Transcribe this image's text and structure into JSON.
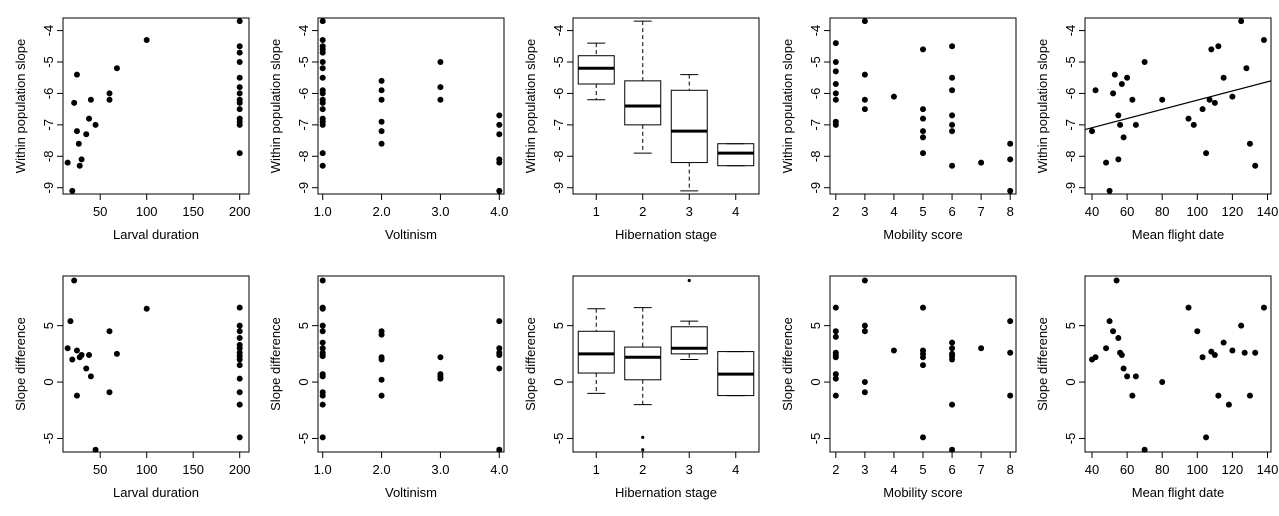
{
  "chart_data": [
    {
      "type": "scatter",
      "row": 0,
      "col": 0,
      "xlabel": "Larval duration",
      "ylabel": "Within population slope",
      "xlim": [
        10,
        210
      ],
      "ylim": [
        -9.2,
        -3.6
      ],
      "xticks": [
        50,
        100,
        150,
        200
      ],
      "yticks": [
        -9,
        -8,
        -7,
        -6,
        -5,
        -4
      ],
      "x": [
        15,
        20,
        22,
        25,
        25,
        27,
        28,
        30,
        35,
        38,
        40,
        45,
        60,
        60,
        68,
        100,
        200,
        200,
        200,
        200,
        200,
        200,
        200,
        200,
        200,
        200,
        200,
        200,
        200,
        200
      ],
      "y": [
        -8.2,
        -9.1,
        -6.3,
        -5.4,
        -7.2,
        -7.6,
        -8.3,
        -8.1,
        -7.3,
        -6.8,
        -6.2,
        -7.0,
        -6.0,
        -6.2,
        -5.2,
        -4.3,
        -3.7,
        -4.5,
        -4.7,
        -5.0,
        -5.5,
        -5.8,
        -6.0,
        -6.2,
        -6.3,
        -6.5,
        -6.8,
        -6.9,
        -7.0,
        -7.9
      ]
    },
    {
      "type": "scatter",
      "row": 0,
      "col": 1,
      "xlabel": "Voltinism",
      "ylabel": "Within population slope",
      "xlim": [
        0.92,
        4.08
      ],
      "ylim": [
        -9.2,
        -3.6
      ],
      "xticks": [
        1.0,
        2.0,
        3.0,
        4.0
      ],
      "xtick_format": 1,
      "yticks": [
        -9,
        -8,
        -7,
        -6,
        -5,
        -4
      ],
      "x": [
        1,
        1,
        1,
        1,
        1,
        1,
        1,
        1,
        1,
        1,
        1,
        1,
        1,
        1,
        1,
        1,
        1,
        1,
        2,
        2,
        2,
        2,
        2,
        2,
        3,
        3,
        3,
        4,
        4,
        4,
        4,
        4,
        4
      ],
      "y": [
        -3.7,
        -4.3,
        -4.5,
        -4.6,
        -4.7,
        -5.0,
        -5.2,
        -5.5,
        -5.9,
        -6.0,
        -6.2,
        -6.3,
        -6.5,
        -6.8,
        -6.9,
        -7.0,
        -7.9,
        -8.3,
        -5.6,
        -5.9,
        -6.2,
        -6.9,
        -7.2,
        -7.6,
        -5.0,
        -5.8,
        -6.2,
        -6.7,
        -7.0,
        -7.3,
        -8.1,
        -8.2,
        -9.1
      ]
    },
    {
      "type": "box",
      "row": 0,
      "col": 2,
      "xlabel": "Hibernation stage",
      "ylabel": "Within population slope",
      "xlim": [
        0.5,
        4.5
      ],
      "ylim": [
        -9.2,
        -3.6
      ],
      "xticks": [
        1,
        2,
        3,
        4
      ],
      "yticks": [
        -9,
        -8,
        -7,
        -6,
        -5,
        -4
      ],
      "categories": [
        1,
        2,
        3,
        4
      ],
      "boxes": [
        {
          "whislo": -6.2,
          "q1": -5.7,
          "med": -5.2,
          "q3": -4.8,
          "whishi": -4.4,
          "fliers": []
        },
        {
          "whislo": -7.9,
          "q1": -7.0,
          "med": -6.4,
          "q3": -5.6,
          "whishi": -3.7,
          "fliers": []
        },
        {
          "whislo": -9.1,
          "q1": -8.2,
          "med": -7.2,
          "q3": -5.9,
          "whishi": -5.4,
          "fliers": []
        },
        {
          "whislo": -8.3,
          "q1": -8.3,
          "med": -7.9,
          "q3": -7.6,
          "whishi": -7.6,
          "fliers": []
        }
      ]
    },
    {
      "type": "scatter",
      "row": 0,
      "col": 3,
      "xlabel": "Mobility score",
      "ylabel": "Within population slope",
      "xlim": [
        1.8,
        8.2
      ],
      "ylim": [
        -9.2,
        -3.6
      ],
      "xticks": [
        2,
        3,
        4,
        5,
        6,
        7,
        8
      ],
      "yticks": [
        -9,
        -8,
        -7,
        -6,
        -5,
        -4
      ],
      "x": [
        2,
        2,
        2,
        2,
        2,
        2,
        2,
        2,
        3,
        3,
        3,
        3,
        4,
        5,
        5,
        5,
        5,
        5,
        5,
        6,
        6,
        6,
        6,
        6,
        6,
        6,
        7,
        8,
        8,
        8
      ],
      "y": [
        -4.4,
        -5.0,
        -5.3,
        -5.7,
        -6.0,
        -6.2,
        -6.9,
        -7.0,
        -3.7,
        -5.4,
        -6.2,
        -6.5,
        -6.1,
        -4.6,
        -6.5,
        -6.8,
        -7.2,
        -7.4,
        -7.9,
        -4.5,
        -5.5,
        -5.9,
        -6.7,
        -7.0,
        -7.2,
        -8.3,
        -8.2,
        -7.6,
        -8.1,
        -9.1
      ]
    },
    {
      "type": "scatter",
      "row": 0,
      "col": 4,
      "xlabel": "Mean flight date",
      "ylabel": "Within population slope",
      "xlim": [
        36,
        142
      ],
      "ylim": [
        -9.2,
        -3.6
      ],
      "xticks": [
        40,
        60,
        80,
        100,
        120,
        140
      ],
      "yticks": [
        -9,
        -8,
        -7,
        -6,
        -5,
        -4
      ],
      "x": [
        40,
        42,
        48,
        50,
        52,
        53,
        55,
        55,
        56,
        57,
        58,
        60,
        63,
        65,
        70,
        80,
        95,
        98,
        103,
        105,
        107,
        108,
        110,
        112,
        115,
        120,
        125,
        128,
        130,
        133,
        138
      ],
      "y": [
        -7.2,
        -5.9,
        -8.2,
        -9.1,
        -6.0,
        -5.4,
        -8.1,
        -6.7,
        -7.0,
        -5.7,
        -7.4,
        -5.5,
        -6.2,
        -7.0,
        -5.0,
        -6.2,
        -6.8,
        -7.0,
        -6.5,
        -7.9,
        -6.2,
        -4.6,
        -6.3,
        -4.5,
        -5.5,
        -6.1,
        -3.7,
        -5.2,
        -7.6,
        -8.3,
        -4.3
      ],
      "regression": {
        "x": [
          36,
          142
        ],
        "y": [
          -7.15,
          -5.6
        ]
      }
    },
    {
      "type": "scatter",
      "row": 1,
      "col": 0,
      "xlabel": "Larval duration",
      "ylabel": "Slope difference",
      "xlim": [
        10,
        210
      ],
      "ylim": [
        -6.2,
        9.4
      ],
      "xticks": [
        50,
        100,
        150,
        200
      ],
      "yticks": [
        -5,
        0,
        5
      ],
      "x": [
        15,
        18,
        20,
        22,
        25,
        25,
        28,
        30,
        35,
        38,
        40,
        45,
        60,
        60,
        68,
        100,
        200,
        200,
        200,
        200,
        200,
        200,
        200,
        200,
        200,
        200,
        200,
        200,
        200,
        200
      ],
      "y": [
        3.0,
        5.4,
        2.0,
        9.0,
        2.8,
        -1.2,
        2.2,
        2.4,
        1.2,
        2.4,
        0.5,
        -6.0,
        4.5,
        -0.9,
        2.5,
        6.5,
        6.6,
        5.0,
        4.5,
        3.9,
        3.3,
        3.0,
        2.6,
        2.3,
        2.0,
        1.5,
        0.3,
        -0.9,
        -2.0,
        -4.9
      ]
    },
    {
      "type": "scatter",
      "row": 1,
      "col": 1,
      "xlabel": "Voltinism",
      "ylabel": "Slope difference",
      "xlim": [
        0.92,
        4.08
      ],
      "ylim": [
        -6.2,
        9.4
      ],
      "xticks": [
        1.0,
        2.0,
        3.0,
        4.0
      ],
      "xtick_format": 1,
      "yticks": [
        -5,
        0,
        5
      ],
      "x": [
        1,
        1,
        1,
        1,
        1,
        1,
        1,
        1,
        1,
        1,
        1,
        1,
        1,
        1,
        1,
        1,
        2,
        2,
        2,
        2,
        2,
        2,
        3,
        3,
        3,
        3,
        4,
        4,
        4,
        4,
        4,
        4
      ],
      "y": [
        9.0,
        6.6,
        6.5,
        5.0,
        4.5,
        3.5,
        3.0,
        2.6,
        2.4,
        2.3,
        0.7,
        0.5,
        -0.9,
        -1.2,
        -2.0,
        -4.9,
        4.5,
        4.2,
        2.2,
        2.0,
        0.2,
        -1.2,
        2.2,
        0.7,
        0.5,
        0.3,
        5.4,
        3.0,
        2.6,
        2.4,
        1.2,
        -6.0
      ]
    },
    {
      "type": "box",
      "row": 1,
      "col": 2,
      "xlabel": "Hibernation stage",
      "ylabel": "Slope difference",
      "xlim": [
        0.5,
        4.5
      ],
      "ylim": [
        -6.2,
        9.4
      ],
      "xticks": [
        1,
        2,
        3,
        4
      ],
      "yticks": [
        -5,
        0,
        5
      ],
      "categories": [
        1,
        2,
        3,
        4
      ],
      "boxes": [
        {
          "whislo": -1.0,
          "q1": 0.8,
          "med": 2.5,
          "q3": 4.5,
          "whishi": 6.5,
          "fliers": []
        },
        {
          "whislo": -2.0,
          "q1": 0.2,
          "med": 2.2,
          "q3": 3.1,
          "whishi": 6.6,
          "fliers": [
            -4.9,
            -6.0
          ]
        },
        {
          "whislo": 2.0,
          "q1": 2.5,
          "med": 3.0,
          "q3": 4.9,
          "whishi": 5.4,
          "fliers": [
            9.0
          ]
        },
        {
          "whislo": -1.2,
          "q1": -1.2,
          "med": 0.7,
          "q3": 2.7,
          "whishi": 2.7,
          "fliers": []
        }
      ]
    },
    {
      "type": "scatter",
      "row": 1,
      "col": 3,
      "xlabel": "Mobility score",
      "ylabel": "Slope difference",
      "xlim": [
        1.8,
        8.2
      ],
      "ylim": [
        -6.2,
        9.4
      ],
      "xticks": [
        2,
        3,
        4,
        5,
        6,
        7,
        8
      ],
      "yticks": [
        -5,
        0,
        5
      ],
      "x": [
        2,
        2,
        2,
        2,
        2,
        2,
        2,
        2,
        2,
        3,
        3,
        3,
        3,
        3,
        4,
        5,
        5,
        5,
        5,
        5,
        5,
        6,
        6,
        6,
        6,
        6,
        6,
        6,
        7,
        8,
        8,
        8
      ],
      "y": [
        6.6,
        4.5,
        4.0,
        2.6,
        2.4,
        2.2,
        0.7,
        0.3,
        -1.2,
        9.0,
        5.0,
        4.5,
        0.0,
        -0.9,
        2.8,
        6.6,
        2.8,
        2.5,
        2.2,
        1.5,
        -4.9,
        3.5,
        3.0,
        2.5,
        2.3,
        2.0,
        -2.0,
        -6.0,
        3.0,
        5.4,
        2.6,
        -1.2
      ]
    },
    {
      "type": "scatter",
      "row": 1,
      "col": 4,
      "xlabel": "Mean flight date",
      "ylabel": "Slope difference",
      "xlim": [
        36,
        142
      ],
      "ylim": [
        -6.2,
        9.4
      ],
      "xticks": [
        40,
        60,
        80,
        100,
        120,
        140
      ],
      "yticks": [
        -5,
        0,
        5
      ],
      "x": [
        40,
        42,
        48,
        50,
        52,
        54,
        55,
        56,
        57,
        58,
        60,
        63,
        65,
        70,
        80,
        95,
        100,
        103,
        105,
        108,
        110,
        112,
        115,
        118,
        120,
        125,
        127,
        130,
        133,
        138
      ],
      "y": [
        2.0,
        2.2,
        3.0,
        5.4,
        4.5,
        9.0,
        3.9,
        2.6,
        2.4,
        1.2,
        0.5,
        -1.2,
        0.5,
        -6.0,
        0.0,
        6.6,
        4.5,
        2.2,
        -4.9,
        2.7,
        2.4,
        -1.2,
        3.5,
        -2.0,
        2.8,
        5.0,
        2.6,
        -1.2,
        2.6,
        6.6
      ]
    }
  ]
}
